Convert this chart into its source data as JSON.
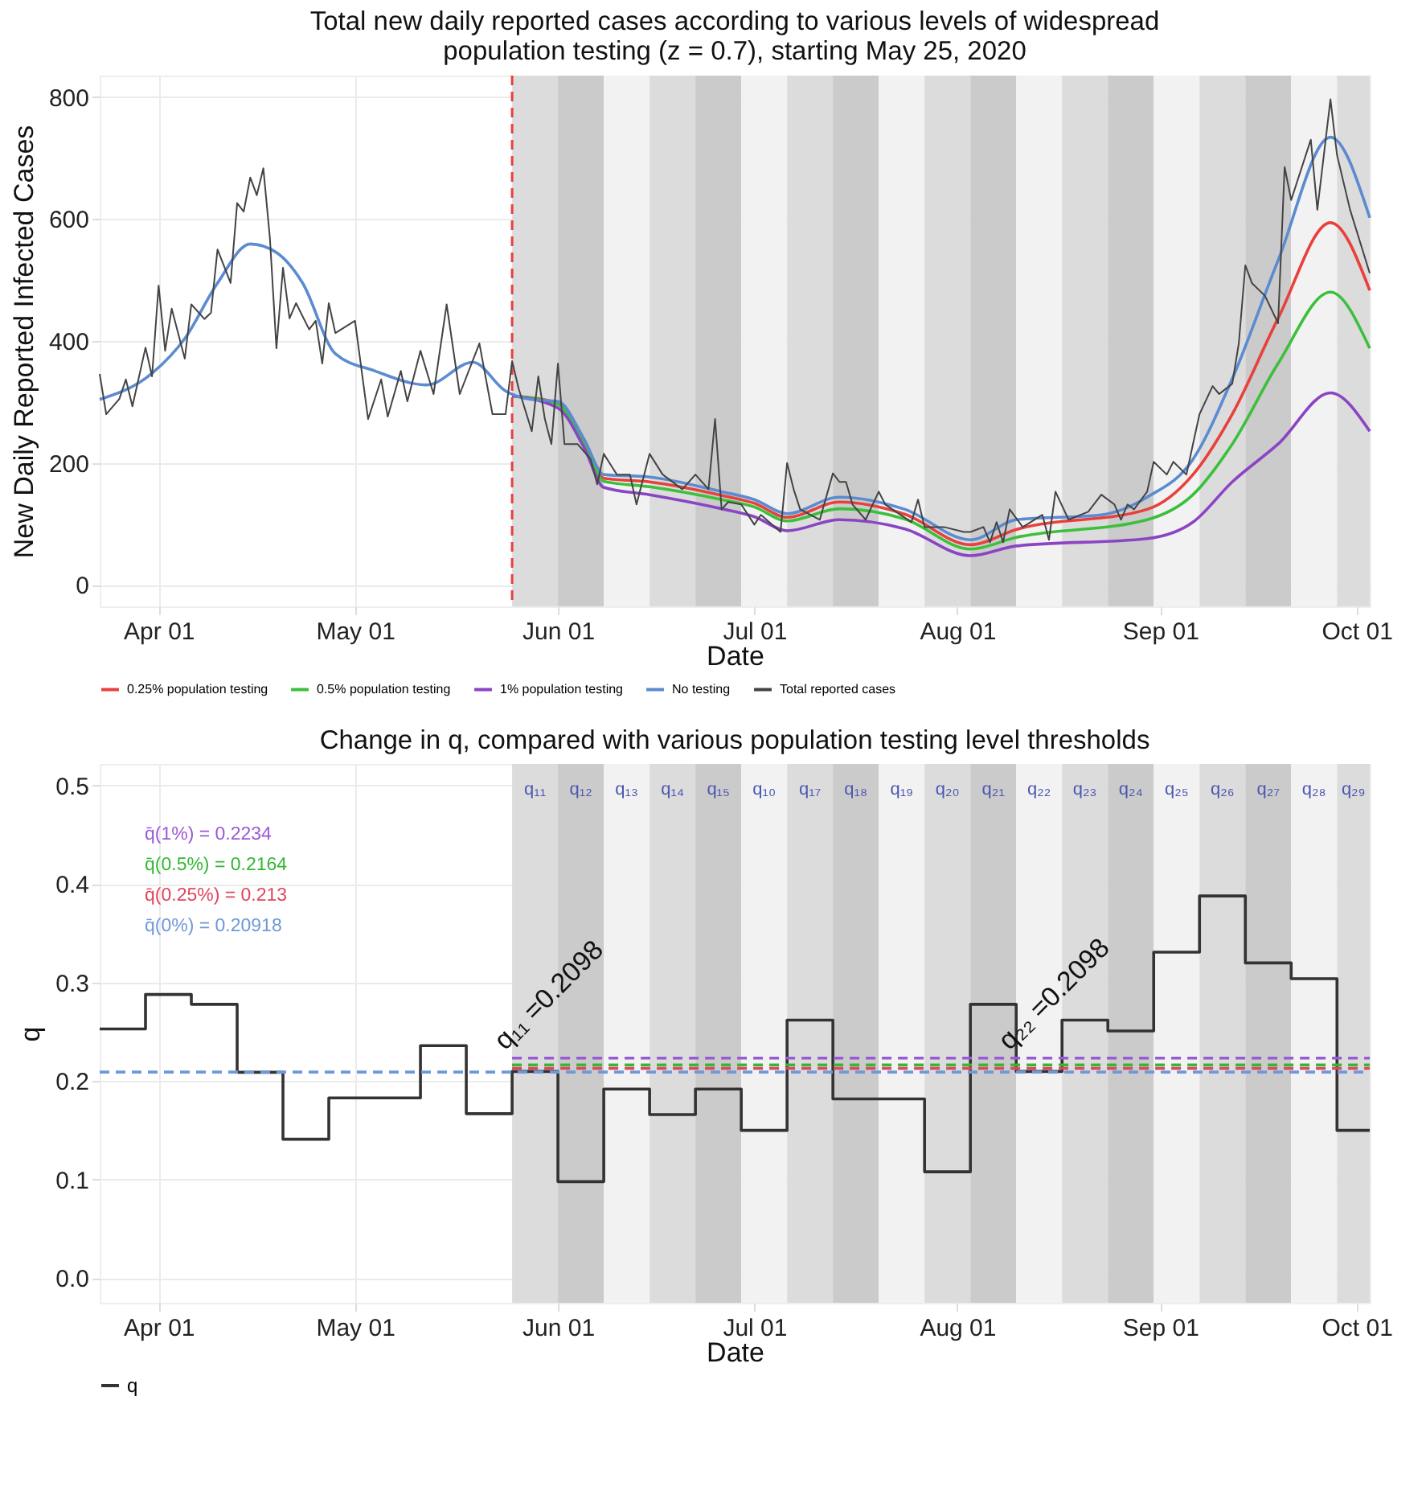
{
  "chart_data": [
    {
      "type": "line",
      "title": "Total new daily reported cases according to various levels of widespread population testing (z = 0.7), starting May 25, 2020",
      "xlabel": "Date",
      "ylabel": "New Daily Reported Infected Cases",
      "xlim": [
        "2020-03-23",
        "2020-10-03"
      ],
      "xticks": [
        {
          "value": "2020-04-01",
          "label": "Apr 01"
        },
        {
          "value": "2020-05-01",
          "label": "May 01"
        },
        {
          "value": "2020-06-01",
          "label": "Jun 01"
        },
        {
          "value": "2020-07-01",
          "label": "Jul 01"
        },
        {
          "value": "2020-08-01",
          "label": "Aug 01"
        },
        {
          "value": "2020-09-01",
          "label": "Sep 01"
        },
        {
          "value": "2020-10-01",
          "label": "Oct 01"
        }
      ],
      "ylim": [
        -35,
        835
      ],
      "yticks": [
        0,
        200,
        400,
        600,
        800
      ],
      "grid": true,
      "legend": "bottom",
      "ref_lines": [
        {
          "axis": "x",
          "value": "2020-05-25",
          "color": "#e8413c",
          "line_style": "dashed"
        }
      ],
      "bands": [
        {
          "axis": "x",
          "from": "2020-05-25",
          "to": "2020-06-01",
          "color": "#dcdcdc"
        },
        {
          "axis": "x",
          "from": "2020-06-01",
          "to": "2020-06-08",
          "color": "#cbcbcb"
        },
        {
          "axis": "x",
          "from": "2020-06-08",
          "to": "2020-06-15",
          "color": "#f2f2f2"
        },
        {
          "axis": "x",
          "from": "2020-06-15",
          "to": "2020-06-22",
          "color": "#dcdcdc"
        },
        {
          "axis": "x",
          "from": "2020-06-22",
          "to": "2020-06-29",
          "color": "#cbcbcb"
        },
        {
          "axis": "x",
          "from": "2020-06-29",
          "to": "2020-07-06",
          "color": "#f2f2f2"
        },
        {
          "axis": "x",
          "from": "2020-07-06",
          "to": "2020-07-13",
          "color": "#dcdcdc"
        },
        {
          "axis": "x",
          "from": "2020-07-13",
          "to": "2020-07-20",
          "color": "#cbcbcb"
        },
        {
          "axis": "x",
          "from": "2020-07-20",
          "to": "2020-07-27",
          "color": "#f2f2f2"
        },
        {
          "axis": "x",
          "from": "2020-07-27",
          "to": "2020-08-03",
          "color": "#dcdcdc"
        },
        {
          "axis": "x",
          "from": "2020-08-03",
          "to": "2020-08-10",
          "color": "#cbcbcb"
        },
        {
          "axis": "x",
          "from": "2020-08-10",
          "to": "2020-08-17",
          "color": "#f2f2f2"
        },
        {
          "axis": "x",
          "from": "2020-08-17",
          "to": "2020-08-24",
          "color": "#dcdcdc"
        },
        {
          "axis": "x",
          "from": "2020-08-24",
          "to": "2020-08-31",
          "color": "#cbcbcb"
        },
        {
          "axis": "x",
          "from": "2020-08-31",
          "to": "2020-09-07",
          "color": "#f2f2f2"
        },
        {
          "axis": "x",
          "from": "2020-09-07",
          "to": "2020-09-14",
          "color": "#dcdcdc"
        },
        {
          "axis": "x",
          "from": "2020-09-14",
          "to": "2020-09-21",
          "color": "#cbcbcb"
        },
        {
          "axis": "x",
          "from": "2020-09-21",
          "to": "2020-09-28",
          "color": "#f2f2f2"
        },
        {
          "axis": "x",
          "from": "2020-09-28",
          "to": "2020-10-03",
          "color": "#dcdcdc"
        }
      ],
      "series": [
        {
          "name": "0.25% population testing",
          "color": "#e8413c",
          "x": [
            "2020-05-25",
            "2020-06-01",
            "2020-06-05",
            "2020-06-08",
            "2020-06-15",
            "2020-06-26",
            "2020-07-01",
            "2020-07-06",
            "2020-07-14",
            "2020-07-24",
            "2020-08-03",
            "2020-08-10",
            "2020-08-30",
            "2020-09-06",
            "2020-09-12",
            "2020-09-19",
            "2020-09-27",
            "2020-10-03"
          ],
          "values": [
            310,
            298,
            235,
            175,
            169,
            147,
            134,
            111,
            136,
            116,
            66,
            91,
            124,
            181,
            280,
            437,
            594,
            483
          ]
        },
        {
          "name": "0.5% population testing",
          "color": "#3cc03c",
          "x": [
            "2020-05-25",
            "2020-06-01",
            "2020-06-05",
            "2020-06-08",
            "2020-06-15",
            "2020-06-26",
            "2020-07-01",
            "2020-07-06",
            "2020-07-14",
            "2020-07-24",
            "2020-08-03",
            "2020-08-10",
            "2020-08-30",
            "2020-09-06",
            "2020-09-12",
            "2020-09-19",
            "2020-09-27",
            "2020-10-03"
          ],
          "values": [
            310,
            296,
            232,
            170,
            161,
            140,
            128,
            105,
            125,
            108,
            59,
            78,
            107,
            148,
            231,
            363,
            480,
            388
          ]
        },
        {
          "name": "1% population testing",
          "color": "#8a44c4",
          "x": [
            "2020-05-25",
            "2020-06-01",
            "2020-06-05",
            "2020-06-08",
            "2020-06-15",
            "2020-06-26",
            "2020-07-01",
            "2020-07-06",
            "2020-07-14",
            "2020-07-24",
            "2020-08-03",
            "2020-08-10",
            "2020-08-30",
            "2020-09-06",
            "2020-09-12",
            "2020-09-19",
            "2020-09-27",
            "2020-10-03"
          ],
          "values": [
            310,
            290,
            225,
            160,
            148,
            125,
            112,
            89,
            107,
            92,
            48,
            64,
            76,
            103,
            169,
            231,
            315,
            252
          ]
        },
        {
          "name": "No testing",
          "color": "#5b8bd0",
          "x": [
            "2020-03-23",
            "2020-03-31",
            "2020-04-05",
            "2020-04-10",
            "2020-04-15",
            "2020-04-19",
            "2020-04-23",
            "2020-04-28",
            "2020-05-04",
            "2020-05-12",
            "2020-05-19",
            "2020-05-24",
            "2020-05-28",
            "2020-06-01",
            "2020-06-05",
            "2020-06-08",
            "2020-06-15",
            "2020-06-26",
            "2020-07-01",
            "2020-07-06",
            "2020-07-14",
            "2020-07-24",
            "2020-08-03",
            "2020-08-10",
            "2020-08-23",
            "2020-08-30",
            "2020-09-06",
            "2020-09-12",
            "2020-09-19",
            "2020-09-27",
            "2020-10-03"
          ],
          "values": [
            304,
            347,
            404,
            495,
            559,
            545,
            495,
            379,
            351,
            328,
            365,
            318,
            304,
            301,
            239,
            181,
            177,
            153,
            140,
            117,
            144,
            124,
            74,
            107,
            115,
            144,
            206,
            338,
            532,
            734,
            602
          ]
        },
        {
          "name": "Total reported cases",
          "color": "#444444",
          "x": [
            "2020-03-23",
            "2020-03-24",
            "2020-03-26",
            "2020-03-27",
            "2020-03-28",
            "2020-03-30",
            "2020-03-31",
            "2020-04-01",
            "2020-04-02",
            "2020-04-03",
            "2020-04-05",
            "2020-04-06",
            "2020-04-08",
            "2020-04-09",
            "2020-04-10",
            "2020-04-12",
            "2020-04-13",
            "2020-04-14",
            "2020-04-15",
            "2020-04-16",
            "2020-04-17",
            "2020-04-18",
            "2020-04-19",
            "2020-04-20",
            "2020-04-21",
            "2020-04-22",
            "2020-04-24",
            "2020-04-25",
            "2020-04-26",
            "2020-04-27",
            "2020-04-28",
            "2020-05-01",
            "2020-05-03",
            "2020-05-05",
            "2020-05-06",
            "2020-05-08",
            "2020-05-09",
            "2020-05-11",
            "2020-05-13",
            "2020-05-15",
            "2020-05-17",
            "2020-05-20",
            "2020-05-22",
            "2020-05-24",
            "2020-05-25",
            "2020-05-26",
            "2020-05-28",
            "2020-05-29",
            "2020-05-30",
            "2020-05-31",
            "2020-06-01",
            "2020-06-02",
            "2020-06-04",
            "2020-06-06",
            "2020-06-07",
            "2020-06-08",
            "2020-06-10",
            "2020-06-12",
            "2020-06-13",
            "2020-06-15",
            "2020-06-17",
            "2020-06-20",
            "2020-06-22",
            "2020-06-24",
            "2020-06-25",
            "2020-06-26",
            "2020-06-27",
            "2020-06-29",
            "2020-07-01",
            "2020-07-02",
            "2020-07-05",
            "2020-07-06",
            "2020-07-07",
            "2020-07-08",
            "2020-07-11",
            "2020-07-13",
            "2020-07-14",
            "2020-07-15",
            "2020-07-16",
            "2020-07-18",
            "2020-07-20",
            "2020-07-21",
            "2020-07-25",
            "2020-07-26",
            "2020-07-27",
            "2020-07-30",
            "2020-08-02",
            "2020-08-03",
            "2020-08-05",
            "2020-08-06",
            "2020-08-07",
            "2020-08-08",
            "2020-08-09",
            "2020-08-11",
            "2020-08-14",
            "2020-08-15",
            "2020-08-16",
            "2020-08-18",
            "2020-08-21",
            "2020-08-23",
            "2020-08-25",
            "2020-08-26",
            "2020-08-27",
            "2020-08-28",
            "2020-08-30",
            "2020-08-31",
            "2020-09-02",
            "2020-09-03",
            "2020-09-05",
            "2020-09-06",
            "2020-09-07",
            "2020-09-09",
            "2020-09-10",
            "2020-09-12",
            "2020-09-13",
            "2020-09-14",
            "2020-09-15",
            "2020-09-17",
            "2020-09-19",
            "2020-09-20",
            "2020-09-21",
            "2020-09-24",
            "2020-09-25",
            "2020-09-27",
            "2020-09-28",
            "2020-09-30",
            "2020-10-03"
          ],
          "values": [
            346,
            280,
            305,
            337,
            293,
            389,
            342,
            491,
            384,
            453,
            371,
            460,
            436,
            446,
            550,
            495,
            626,
            612,
            668,
            639,
            683,
            569,
            388,
            520,
            437,
            462,
            419,
            433,
            363,
            462,
            413,
            433,
            272,
            337,
            276,
            351,
            301,
            384,
            313,
            460,
            313,
            396,
            280,
            280,
            367,
            322,
            252,
            342,
            272,
            231,
            363,
            231,
            231,
            206,
            165,
            215,
            181,
            181,
            132,
            215,
            181,
            157,
            181,
            157,
            272,
            124,
            136,
            132,
            99,
            115,
            87,
            200,
            157,
            124,
            107,
            183,
            169,
            169,
            132,
            107,
            153,
            132,
            103,
            140,
            95,
            95,
            87,
            87,
            95,
            70,
            103,
            70,
            124,
            95,
            115,
            74,
            153,
            107,
            120,
            148,
            132,
            107,
            132,
            124,
            153,
            202,
            181,
            202,
            181,
            231,
            280,
            326,
            313,
            330,
            396,
            524,
            495,
            474,
            429,
            685,
            631,
            730,
            615,
            796,
            705,
            615,
            511
          ]
        }
      ]
    },
    {
      "type": "step",
      "title": "Change in q, compared with various population testing level thresholds",
      "xlabel": "Date",
      "ylabel": "q",
      "xlim": [
        "2020-03-23",
        "2020-10-03"
      ],
      "xticks": [
        {
          "value": "2020-04-01",
          "label": "Apr 01"
        },
        {
          "value": "2020-05-01",
          "label": "May 01"
        },
        {
          "value": "2020-06-01",
          "label": "Jun 01"
        },
        {
          "value": "2020-07-01",
          "label": "Jul 01"
        },
        {
          "value": "2020-08-01",
          "label": "Aug 01"
        },
        {
          "value": "2020-09-01",
          "label": "Sep 01"
        },
        {
          "value": "2020-10-01",
          "label": "Oct 01"
        }
      ],
      "ylim": [
        -0.025,
        0.522
      ],
      "yticks": [
        {
          "value": 0,
          "label": "0.0"
        },
        0.1,
        0.2,
        0.3,
        0.4,
        0.5
      ],
      "grid": true,
      "legend": "bottom",
      "bands": [
        {
          "axis": "x",
          "from": "2020-05-25",
          "to": "2020-06-01",
          "color": "#dcdcdc",
          "label": "q₁₁"
        },
        {
          "axis": "x",
          "from": "2020-06-01",
          "to": "2020-06-08",
          "color": "#cbcbcb",
          "label": "q₁₂"
        },
        {
          "axis": "x",
          "from": "2020-06-08",
          "to": "2020-06-15",
          "color": "#f2f2f2",
          "label": "q₁₃"
        },
        {
          "axis": "x",
          "from": "2020-06-15",
          "to": "2020-06-22",
          "color": "#dcdcdc",
          "label": "q₁₄"
        },
        {
          "axis": "x",
          "from": "2020-06-22",
          "to": "2020-06-29",
          "color": "#cbcbcb",
          "label": "q₁₅"
        },
        {
          "axis": "x",
          "from": "2020-06-29",
          "to": "2020-07-06",
          "color": "#f2f2f2",
          "label": "q₁₀"
        },
        {
          "axis": "x",
          "from": "2020-07-06",
          "to": "2020-07-13",
          "color": "#dcdcdc",
          "label": "q₁₇"
        },
        {
          "axis": "x",
          "from": "2020-07-13",
          "to": "2020-07-20",
          "color": "#cbcbcb",
          "label": "q₁₈"
        },
        {
          "axis": "x",
          "from": "2020-07-20",
          "to": "2020-07-27",
          "color": "#f2f2f2",
          "label": "q₁₉"
        },
        {
          "axis": "x",
          "from": "2020-07-27",
          "to": "2020-08-03",
          "color": "#dcdcdc",
          "label": "q₂₀"
        },
        {
          "axis": "x",
          "from": "2020-08-03",
          "to": "2020-08-10",
          "color": "#cbcbcb",
          "label": "q₂₁"
        },
        {
          "axis": "x",
          "from": "2020-08-10",
          "to": "2020-08-17",
          "color": "#f2f2f2",
          "label": "q₂₂"
        },
        {
          "axis": "x",
          "from": "2020-08-17",
          "to": "2020-08-24",
          "color": "#dcdcdc",
          "label": "q₂₃"
        },
        {
          "axis": "x",
          "from": "2020-08-24",
          "to": "2020-08-31",
          "color": "#cbcbcb",
          "label": "q₂₄"
        },
        {
          "axis": "x",
          "from": "2020-08-31",
          "to": "2020-09-07",
          "color": "#f2f2f2",
          "label": "q₂₅"
        },
        {
          "axis": "x",
          "from": "2020-09-07",
          "to": "2020-09-14",
          "color": "#dcdcdc",
          "label": "q₂₆"
        },
        {
          "axis": "x",
          "from": "2020-09-14",
          "to": "2020-09-21",
          "color": "#cbcbcb",
          "label": "q₂₇"
        },
        {
          "axis": "x",
          "from": "2020-09-21",
          "to": "2020-09-28",
          "color": "#f2f2f2",
          "label": "q₂₈"
        },
        {
          "axis": "x",
          "from": "2020-09-28",
          "to": "2020-10-03",
          "color": "#dcdcdc",
          "label": "q₂₉"
        }
      ],
      "annotations": [
        {
          "text": "q₁₁ =0.2098",
          "x": "2020-05-25",
          "y": 0.2098
        },
        {
          "text": "q₂₂ =0.2098",
          "x": "2020-08-10",
          "y": 0.2098
        }
      ],
      "series": [
        {
          "name": "q",
          "color": "#333333",
          "x": [
            "2020-03-23",
            "2020-03-30",
            "2020-04-06",
            "2020-04-13",
            "2020-04-20",
            "2020-04-27",
            "2020-05-04",
            "2020-05-11",
            "2020-05-18",
            "2020-05-25",
            "2020-06-01",
            "2020-06-08",
            "2020-06-15",
            "2020-06-22",
            "2020-06-29",
            "2020-07-06",
            "2020-07-13",
            "2020-07-20",
            "2020-07-27",
            "2020-08-03",
            "2020-08-10",
            "2020-08-17",
            "2020-08-24",
            "2020-08-31",
            "2020-09-07",
            "2020-09-14",
            "2020-09-21",
            "2020-09-28",
            "2020-10-03"
          ],
          "values": [
            0.253,
            0.288,
            0.278,
            0.209,
            0.141,
            0.183,
            0.183,
            0.236,
            0.167,
            0.2098,
            0.098,
            0.192,
            0.166,
            0.192,
            0.15,
            0.262,
            0.182,
            0.182,
            0.108,
            0.278,
            0.2098,
            0.262,
            0.251,
            0.331,
            0.388,
            0.32,
            0.304,
            0.15,
            0.15
          ]
        },
        {
          "name": "q̄(1%) = 0.2234",
          "type": "line",
          "line_style": "dashed",
          "color": "#9b59d6",
          "x": [
            "2020-05-25",
            "2020-10-03"
          ],
          "values": [
            0.2234,
            0.2234
          ]
        },
        {
          "name": "q̄(0.5%) = 0.2164",
          "type": "line",
          "line_style": "dashed",
          "color": "#33b833",
          "x": [
            "2020-05-25",
            "2020-10-03"
          ],
          "values": [
            0.2164,
            0.2164
          ]
        },
        {
          "name": "q̄(0.25%) = 0.213",
          "type": "line",
          "line_style": "dashed",
          "color": "#e0455a",
          "x": [
            "2020-05-25",
            "2020-10-03"
          ],
          "values": [
            0.213,
            0.213
          ]
        },
        {
          "name": "q̄(0%) = 0.20918",
          "type": "line",
          "line_style": "dashed",
          "color": "#6f98d8",
          "x": [
            "2020-03-23",
            "2020-10-03"
          ],
          "values": [
            0.20918,
            0.20918
          ]
        }
      ]
    }
  ]
}
